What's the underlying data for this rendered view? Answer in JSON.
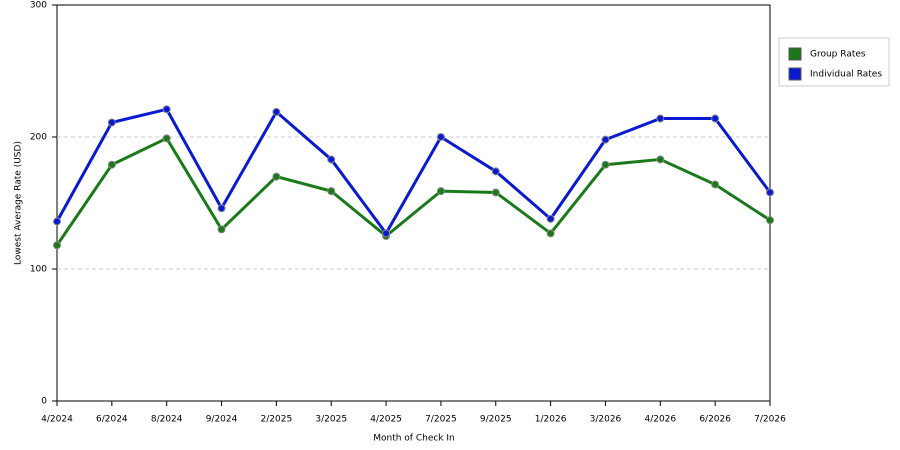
{
  "chart_data": {
    "type": "line",
    "x_label": "Month of Check In",
    "y_label": "Lowest Average Rate (USD)",
    "categories": [
      "4/2024",
      "6/2024",
      "8/2024",
      "9/2024",
      "2/2025",
      "3/2025",
      "4/2025",
      "7/2025",
      "9/2025",
      "1/2026",
      "3/2026",
      "4/2026",
      "6/2026",
      "7/2026"
    ],
    "series": [
      {
        "name": "Group Rates",
        "color": "#1a7a1a",
        "values": [
          118,
          179,
          199,
          130,
          170,
          159,
          125,
          159,
          158,
          127,
          179,
          183,
          164,
          137
        ]
      },
      {
        "name": "Individual Rates",
        "color": "#0a1ad0",
        "values": [
          136,
          211,
          221,
          146,
          219,
          183,
          127,
          200,
          174,
          138,
          198,
          214,
          214,
          158
        ]
      }
    ],
    "ylim": [
      0,
      300
    ],
    "yticks": [
      0,
      100,
      200,
      300
    ],
    "grid": true,
    "legend": "right"
  }
}
